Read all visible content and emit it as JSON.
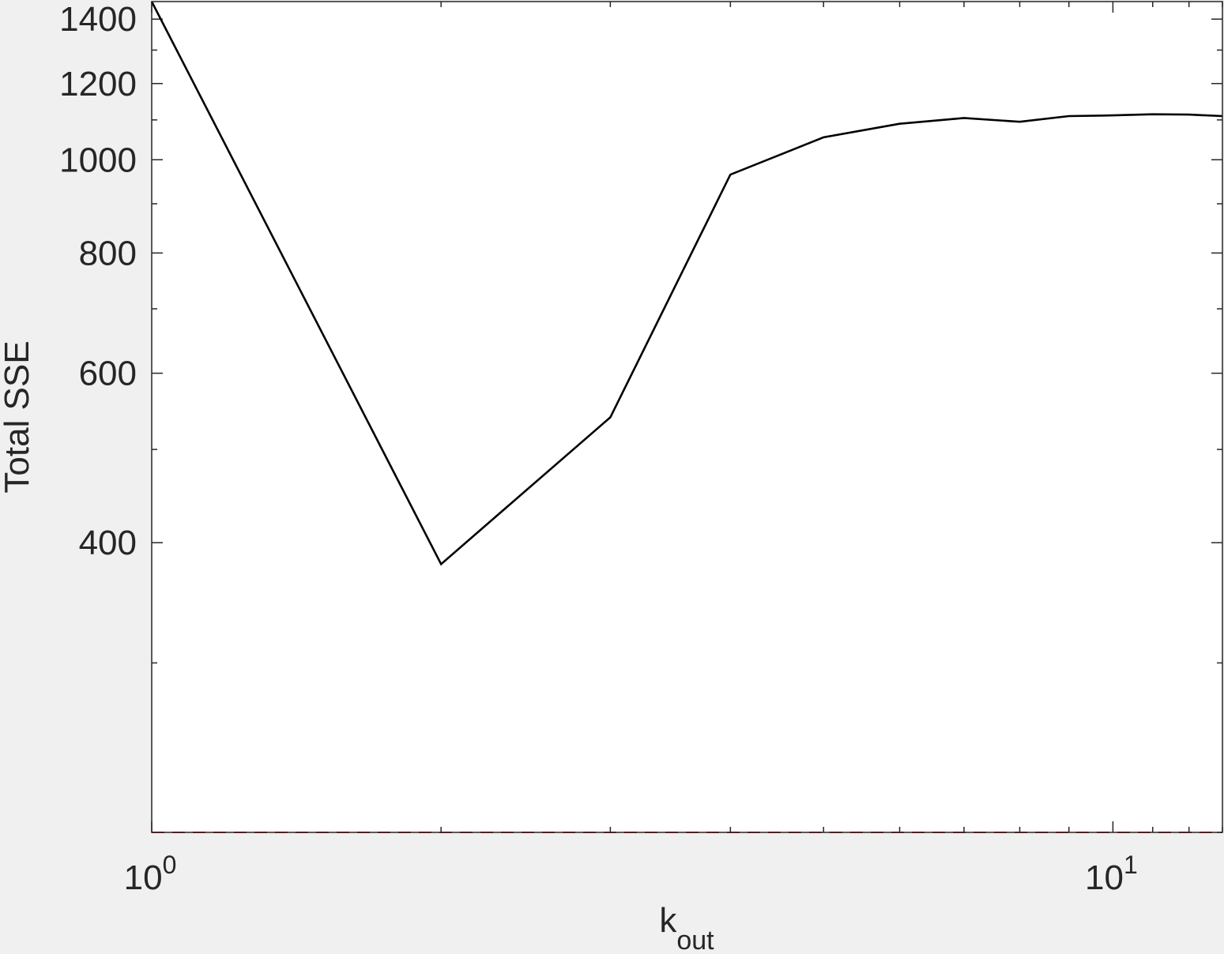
{
  "chart_data": {
    "type": "line",
    "title": "",
    "xlabel": {
      "base": "k",
      "subscript": "out"
    },
    "ylabel": "Total SSE",
    "x_scale": "log",
    "y_scale": "log",
    "xlim": [
      1,
      13
    ],
    "ylim": [
      200,
      1460
    ],
    "x_ticks": [
      {
        "value": 1,
        "base": "10",
        "exp": "0"
      },
      {
        "value": 10,
        "base": "10",
        "exp": "1"
      }
    ],
    "y_ticks": [
      400,
      600,
      800,
      1000,
      1200,
      1400
    ],
    "y_tick_labels": [
      "400",
      "600",
      "800",
      "1000",
      "1200",
      "1400"
    ],
    "grid": false,
    "series": [
      {
        "color": "#000000",
        "style": "solid",
        "x": [
          1,
          2,
          3,
          4,
          5,
          6,
          7,
          8,
          9,
          10,
          11,
          12,
          13
        ],
        "y": [
          1460,
          380,
          540,
          965,
          1055,
          1090,
          1105,
          1095,
          1110,
          1112,
          1115,
          1114,
          1110
        ]
      },
      {
        "color": "#ff0000",
        "style": "dashed",
        "x": [
          1,
          13
        ],
        "y": [
          200,
          200
        ]
      }
    ],
    "colors": {
      "axes_background": "#ffffff",
      "figure_background": "#f0f0f0",
      "axis": "#262626"
    }
  }
}
